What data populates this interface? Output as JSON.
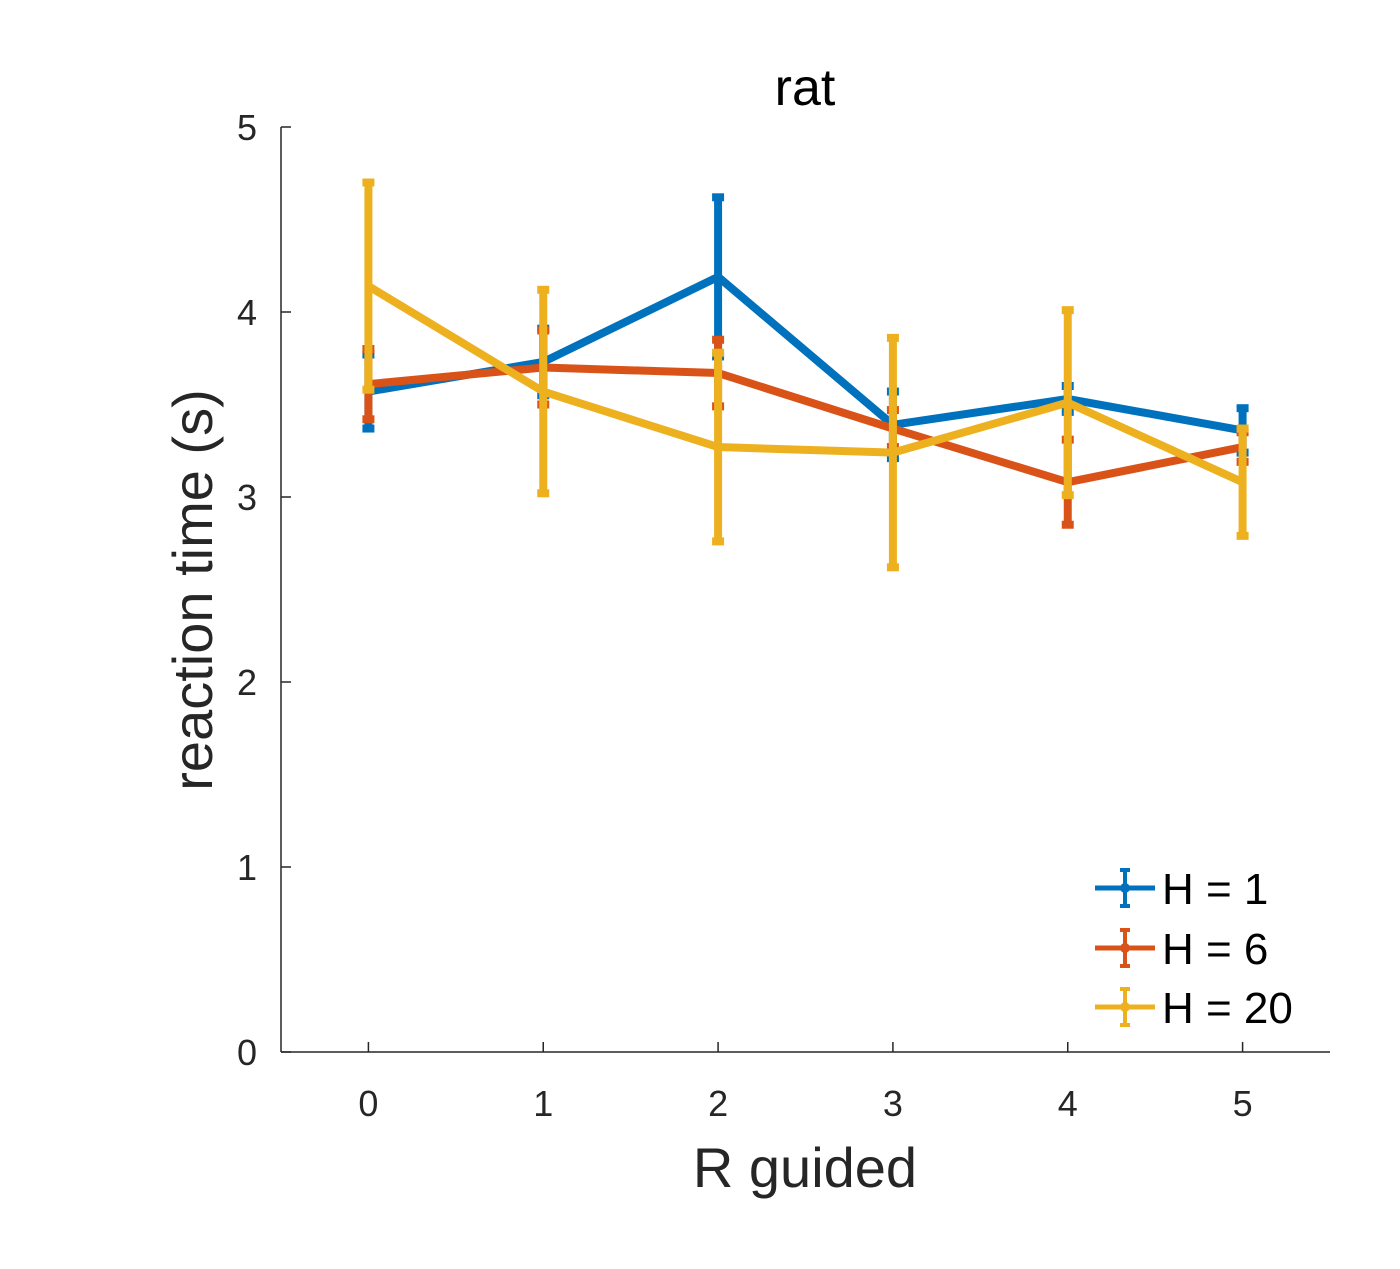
{
  "chart_data": {
    "type": "line",
    "title": "rat",
    "xlabel": "R guided",
    "ylabel": "reaction time (s)",
    "x": [
      0,
      1,
      2,
      3,
      4,
      5
    ],
    "xlim": [
      -0.5,
      5.5
    ],
    "ylim": [
      0,
      5
    ],
    "xticks": [
      "0",
      "1",
      "2",
      "3",
      "4",
      "5"
    ],
    "yticks": [
      "0",
      "1",
      "2",
      "3",
      "4",
      "5"
    ],
    "grid": false,
    "legend_position": "bottom-right",
    "series": [
      {
        "name": "H = 1",
        "color": "#0072BD",
        "values": [
          3.57,
          3.73,
          4.19,
          3.39,
          3.53,
          3.36
        ],
        "errors": [
          0.2,
          0.18,
          0.43,
          0.18,
          0.07,
          0.12
        ]
      },
      {
        "name": "H = 6",
        "color": "#D95319",
        "values": [
          3.61,
          3.7,
          3.67,
          3.37,
          3.08,
          3.27
        ],
        "errors": [
          0.19,
          0.2,
          0.18,
          0.1,
          0.23,
          0.08
        ]
      },
      {
        "name": "H = 20",
        "color": "#EDB120",
        "values": [
          4.14,
          3.57,
          3.27,
          3.24,
          3.51,
          3.08
        ],
        "errors": [
          0.56,
          0.55,
          0.51,
          0.62,
          0.5,
          0.29
        ]
      }
    ]
  }
}
